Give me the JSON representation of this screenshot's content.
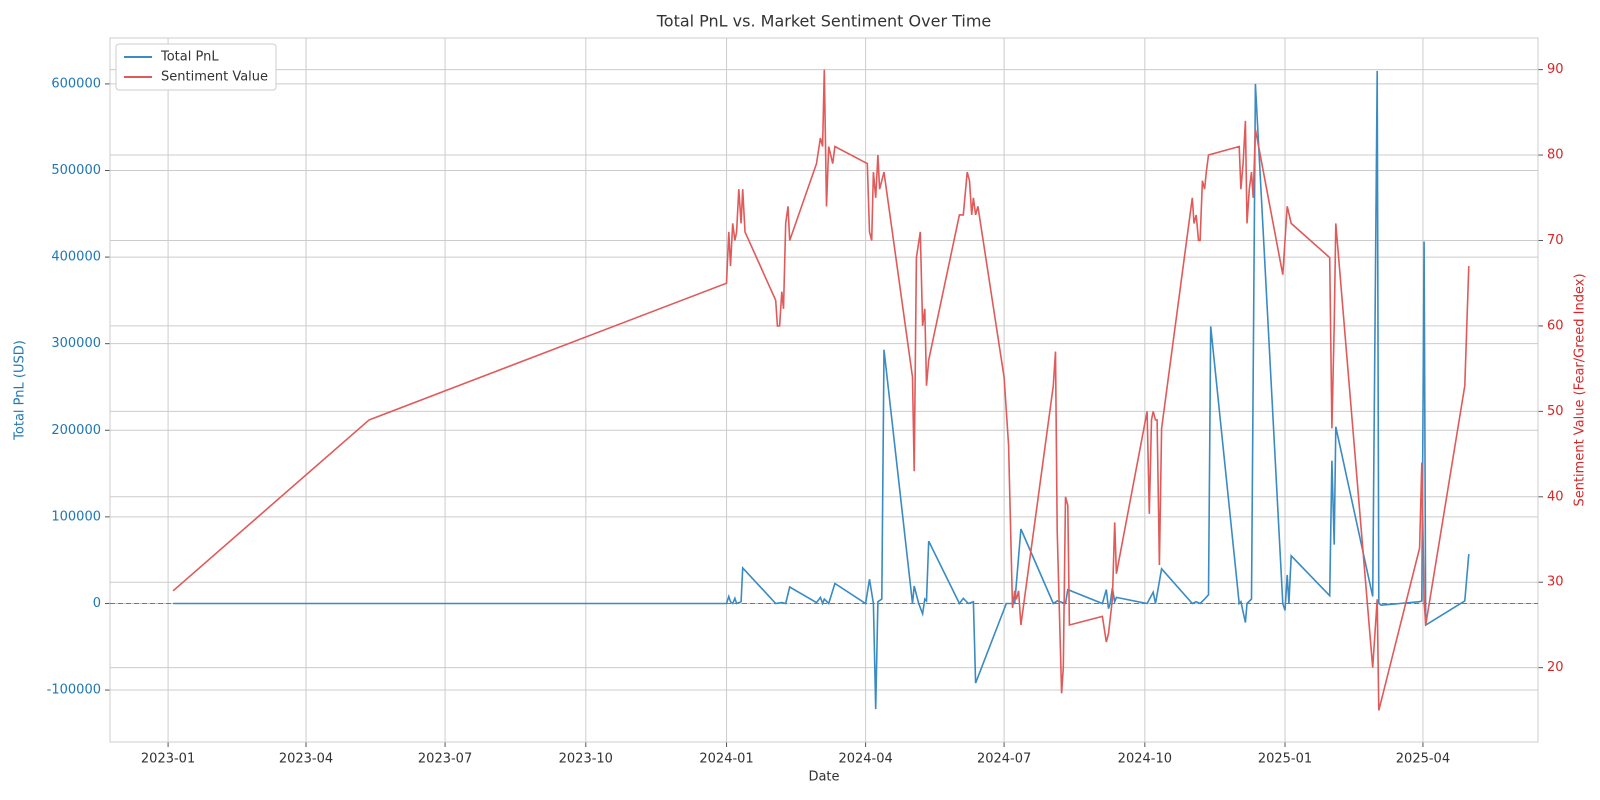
{
  "chart_data": {
    "type": "line",
    "title": "Total PnL vs. Market Sentiment Over Time",
    "x_label": "Date",
    "y_label": "Total PnL (USD)",
    "y2_label": "Sentiment Value (Fear/Greed Index)",
    "xlim": [
      2022.896,
      2025.453
    ],
    "xticks": [
      {
        "value": 2023.0,
        "label": "2023-01"
      },
      {
        "value": 2023.247,
        "label": "2023-04"
      },
      {
        "value": 2023.496,
        "label": "2023-07"
      },
      {
        "value": 2023.748,
        "label": "2023-10"
      },
      {
        "value": 2024.0,
        "label": "2024-01"
      },
      {
        "value": 2024.249,
        "label": "2024-04"
      },
      {
        "value": 2024.497,
        "label": "2024-07"
      },
      {
        "value": 2024.749,
        "label": "2024-10"
      },
      {
        "value": 2025.0,
        "label": "2025-01"
      },
      {
        "value": 2025.247,
        "label": "2025-04"
      }
    ],
    "ylim": [
      -160000,
      653000
    ],
    "yticks": [
      -100000,
      0,
      100000,
      200000,
      300000,
      400000,
      500000,
      600000
    ],
    "y2lim": [
      11.3,
      93.7
    ],
    "y2ticks": [
      20,
      30,
      40,
      50,
      60,
      70,
      80,
      90
    ],
    "reference_line": 0,
    "grid": true,
    "legend": "upper left",
    "y_color": "#1f77b4",
    "y2_color": "#d62728",
    "series": [
      {
        "name": "Total PnL",
        "color": "#3a8bc2",
        "axis": "y",
        "x": [
          2023.009,
          2024.0,
          2024.004,
          2024.007,
          2024.011,
          2024.015,
          2024.018,
          2024.026,
          2024.029,
          2024.088,
          2024.099,
          2024.106,
          2024.113,
          2024.161,
          2024.168,
          2024.172,
          2024.175,
          2024.183,
          2024.194,
          2024.249,
          2024.256,
          2024.263,
          2024.267,
          2024.271,
          2024.278,
          2024.282,
          2024.333,
          2024.336,
          2024.344,
          2024.351,
          2024.355,
          2024.358,
          2024.362,
          2024.417,
          2024.424,
          2024.433,
          2024.442,
          2024.446,
          2024.501,
          2024.516,
          2024.527,
          2024.585,
          2024.592,
          2024.607,
          2024.611,
          2024.673,
          2024.68,
          2024.684,
          2024.687,
          2024.691,
          2024.695,
          2024.698,
          2024.753,
          2024.764,
          2024.768,
          2024.779,
          2024.834,
          2024.841,
          2024.848,
          2024.856,
          2024.863,
          2024.867,
          2024.918,
          2024.921,
          2024.929,
          2024.932,
          2024.94,
          2024.947,
          2024.996,
          2025.0,
          2025.004,
          2025.007,
          2025.011,
          2025.08,
          2025.084,
          2025.088,
          2025.091,
          2025.157,
          2025.165,
          2025.168,
          2025.172,
          2025.241,
          2025.245,
          2025.249,
          2025.252,
          2025.322,
          2025.329
        ],
        "values": [
          0,
          0,
          8000,
          2000,
          0,
          6000,
          0,
          2000,
          41000,
          0,
          1000,
          0,
          19000,
          1000,
          7000,
          0,
          5000,
          0,
          23000,
          0,
          28000,
          0,
          -122000,
          2000,
          5000,
          293000,
          0,
          20000,
          0,
          -12000,
          5000,
          3000,
          72000,
          0,
          6000,
          0,
          2000,
          -92000,
          0,
          0,
          86000,
          0,
          3000,
          0,
          16000,
          0,
          16000,
          -6000,
          0,
          18000,
          2000,
          7000,
          0,
          13000,
          0,
          40000,
          0,
          2000,
          0,
          5000,
          10000,
          320000,
          0,
          2000,
          -22000,
          0,
          5000,
          600000,
          0,
          -8000,
          33000,
          0,
          55000,
          9000,
          165000,
          68000,
          204000,
          8000,
          615000,
          0,
          -2000,
          2000,
          3000,
          418000,
          -25000,
          3000,
          57000
        ]
      },
      {
        "name": "Sentiment Value",
        "color": "#e05a5a",
        "axis": "y2",
        "x": [
          2023.009,
          2023.36,
          2024.0,
          2024.004,
          2024.007,
          2024.011,
          2024.015,
          2024.018,
          2024.022,
          2024.026,
          2024.029,
          2024.033,
          2024.088,
          2024.091,
          2024.095,
          2024.099,
          2024.102,
          2024.106,
          2024.11,
          2024.113,
          2024.161,
          2024.168,
          2024.172,
          2024.175,
          2024.179,
          2024.183,
          2024.19,
          2024.194,
          2024.252,
          2024.256,
          2024.26,
          2024.263,
          2024.267,
          2024.271,
          2024.274,
          2024.282,
          2024.333,
          2024.336,
          2024.34,
          2024.347,
          2024.351,
          2024.355,
          2024.358,
          2024.362,
          2024.417,
          2024.424,
          2024.431,
          2024.435,
          2024.439,
          2024.442,
          2024.446,
          2024.45,
          2024.497,
          2024.505,
          2024.512,
          2024.516,
          2024.519,
          2024.523,
          2024.527,
          2024.585,
          2024.589,
          2024.592,
          2024.6,
          2024.603,
          2024.607,
          2024.611,
          2024.614,
          2024.673,
          2024.68,
          2024.684,
          2024.691,
          2024.695,
          2024.698,
          2024.753,
          2024.757,
          2024.761,
          2024.764,
          2024.768,
          2024.771,
          2024.775,
          2024.779,
          2024.834,
          2024.837,
          2024.841,
          2024.845,
          2024.848,
          2024.852,
          2024.856,
          2024.859,
          2024.863,
          2024.918,
          2024.921,
          2024.925,
          2024.929,
          2024.932,
          2024.936,
          2024.94,
          2024.943,
          2024.947,
          2024.996,
          2025.0,
          2025.004,
          2025.011,
          2025.08,
          2025.084,
          2025.088,
          2025.091,
          2025.157,
          2025.165,
          2025.168,
          2025.241,
          2025.245,
          2025.249,
          2025.252,
          2025.322,
          2025.329
        ],
        "values": [
          29,
          49,
          65,
          71,
          67,
          72,
          70,
          71,
          76,
          72,
          76,
          71,
          63,
          60,
          60,
          64,
          62,
          72,
          74,
          70,
          79,
          82,
          81,
          90,
          74,
          81,
          79,
          81,
          79,
          71,
          70,
          78,
          75,
          80,
          76,
          78,
          54,
          43,
          68,
          71,
          60,
          62,
          53,
          56,
          73,
          73,
          78,
          77,
          73,
          75,
          73,
          74,
          54,
          46,
          27,
          29,
          28,
          29,
          25,
          53,
          57,
          36,
          17,
          20,
          40,
          39,
          25,
          26,
          23,
          24,
          28,
          37,
          31,
          50,
          38,
          49,
          50,
          49,
          49,
          32,
          48,
          75,
          72,
          73,
          70,
          70,
          77,
          76,
          78,
          80,
          81,
          76,
          79,
          84,
          72,
          76,
          78,
          75,
          83,
          66,
          70,
          74,
          72,
          68,
          48,
          60,
          72,
          20,
          28,
          15,
          34,
          44,
          28,
          25,
          53,
          67
        ]
      }
    ]
  }
}
